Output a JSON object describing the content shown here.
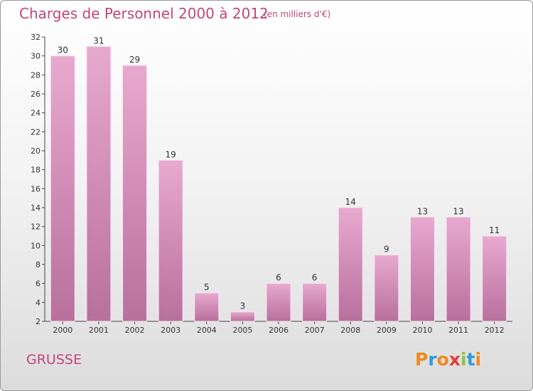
{
  "header": {
    "title": "Charges de Personnel 2000 à 2012",
    "unit_note": "(en milliers d'€)"
  },
  "footer": {
    "commune": "GRUSSE",
    "logo_text": "Proxiti"
  },
  "colors": {
    "title": "#c2457a",
    "bar_light": "#e8a9cf",
    "bar_dark": "#b86f9c",
    "logo": [
      "#f08a1d",
      "#2f9ad8",
      "#f08a1d",
      "#e23d3d",
      "#8cc63f",
      "#2f9ad8",
      "#f08a1d"
    ]
  },
  "chart_data": {
    "type": "bar",
    "categories": [
      "2000",
      "2001",
      "2002",
      "2003",
      "2004",
      "2005",
      "2006",
      "2007",
      "2008",
      "2009",
      "2010",
      "2011",
      "2012"
    ],
    "values": [
      30,
      31,
      29,
      19,
      5,
      3,
      6,
      6,
      14,
      9,
      13,
      13,
      11
    ],
    "ylim": [
      2,
      32
    ],
    "yticks": [
      2,
      4,
      6,
      8,
      10,
      12,
      14,
      16,
      18,
      20,
      22,
      24,
      26,
      28,
      30,
      32
    ],
    "grid": false,
    "legend": "none"
  }
}
